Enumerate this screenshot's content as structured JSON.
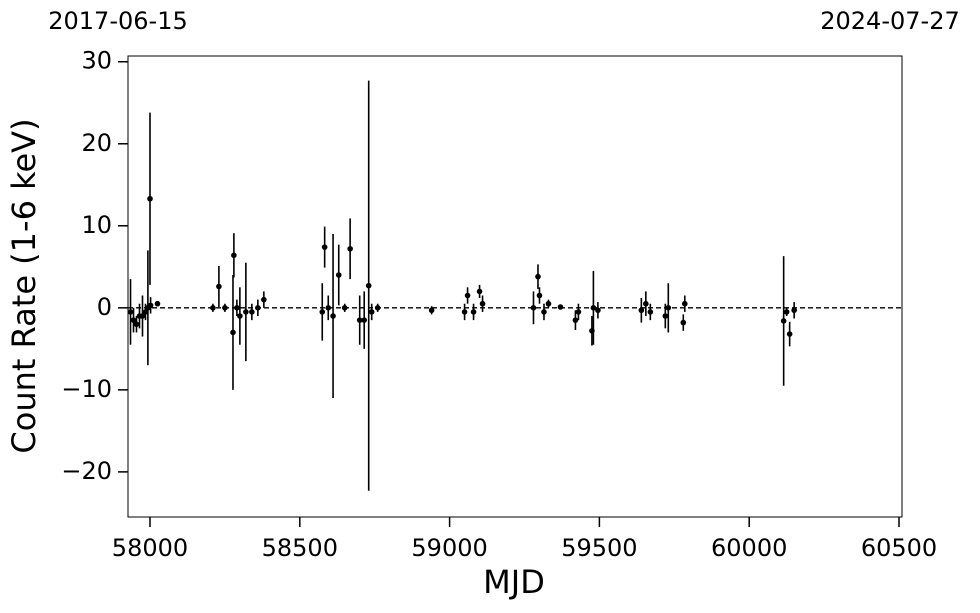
{
  "chart_data": {
    "type": "scatter",
    "top_labels": [
      "2017-06-15",
      "2024-07-27"
    ],
    "x_label": "MJD",
    "y_label": "Count Rate (1-6 keV)",
    "xlim": [
      57926.6,
      60510
    ],
    "ylim": [
      -25.5,
      30.7
    ],
    "xticks": [
      58000,
      58500,
      59000,
      59500,
      60000,
      60500
    ],
    "yticks": [
      {
        "value": -20,
        "label": "−20"
      },
      {
        "value": -10,
        "label": "−10"
      },
      0,
      10,
      20,
      30
    ],
    "hline": 0,
    "color": "#000000",
    "series": [
      {
        "x": [
          57935,
          57945,
          57955,
          57965,
          57975,
          57985,
          57993,
          58000,
          58002,
          58025,
          58210,
          58230,
          58250,
          58277,
          58280,
          58290,
          58300,
          58320,
          58340,
          58360,
          58380,
          58575,
          58583,
          58595,
          58611,
          58630,
          58650,
          58668,
          58700,
          58715,
          58730,
          58740,
          58760,
          58940,
          59050,
          59060,
          59080,
          59100,
          59110,
          59280,
          59295,
          59300,
          59315,
          59330,
          59370,
          59420,
          59430,
          59475,
          59480,
          59495,
          59640,
          59655,
          59670,
          59720,
          59730,
          59780,
          59785,
          60115,
          60125,
          60135,
          60150
        ],
        "values": [
          -0.5,
          -1.5,
          -2,
          -1,
          -1,
          -0.5,
          0,
          13.3,
          0.3,
          0.5,
          0,
          2.6,
          0,
          -3,
          6.4,
          0,
          -1,
          -0.5,
          -0.5,
          0,
          1,
          -0.5,
          7.4,
          0,
          -1,
          4,
          0,
          7.2,
          -1.5,
          -1.5,
          2.7,
          -0.5,
          0,
          -0.3,
          -0.5,
          1.5,
          -0.5,
          2,
          0.5,
          0,
          3.8,
          1.5,
          -0.5,
          0.5,
          0.1,
          -1.5,
          -0.5,
          -2.8,
          0,
          -0.3,
          -0.3,
          0.5,
          -0.5,
          -1,
          0,
          -1.8,
          0.5,
          -1.6,
          -0.5,
          -3.2,
          -0.3
        ],
        "errors": [
          4,
          1.5,
          1,
          1.5,
          2.5,
          1,
          7,
          10.5,
          1,
          0.3,
          0.5,
          2.5,
          0.5,
          7,
          2.7,
          1,
          3.5,
          6,
          1,
          1,
          1,
          3.5,
          2.5,
          1.5,
          10,
          3.7,
          0.5,
          3.7,
          3,
          3.5,
          25,
          1,
          0.5,
          0.5,
          1,
          1,
          1,
          0.8,
          1,
          2,
          1.5,
          1,
          1,
          0.5,
          0.3,
          1.2,
          1,
          1.8,
          4.5,
          1,
          1.5,
          1.5,
          1,
          1.5,
          3,
          1,
          1,
          7.9,
          0.5,
          1.5,
          1
        ]
      }
    ]
  }
}
